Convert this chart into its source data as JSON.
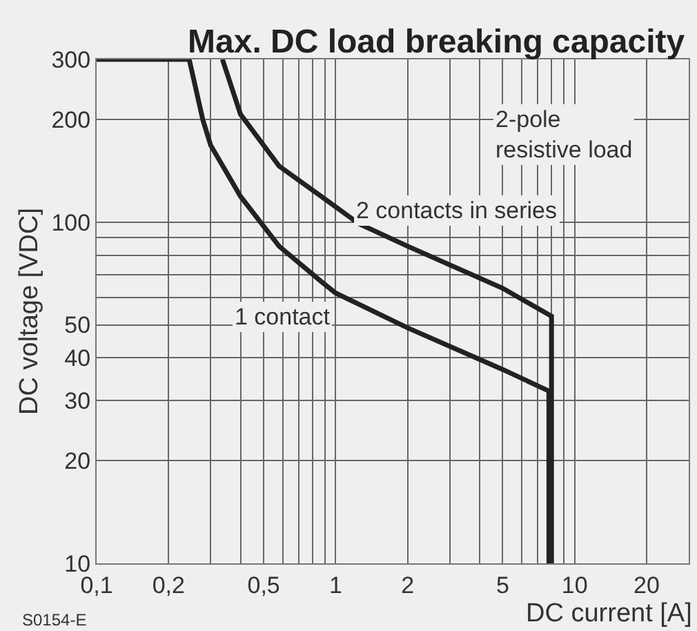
{
  "chart_data": {
    "type": "line",
    "title": "Max. DC load breaking capacity",
    "xlabel": "DC current [A]",
    "ylabel": "DC voltage [VDC]",
    "log": "xy",
    "grid": true,
    "legend": false,
    "marker": "none",
    "line_style": "solid",
    "xlim": [
      0.1,
      30
    ],
    "ylim": [
      10,
      300
    ],
    "xticks": [
      {
        "value": 0.1,
        "label": "0,1"
      },
      {
        "value": 0.2,
        "label": "0,2"
      },
      {
        "value": 0.3,
        "label": null
      },
      {
        "value": 0.4,
        "label": null
      },
      {
        "value": 0.5,
        "label": "0,5"
      },
      {
        "value": 0.6,
        "label": null
      },
      {
        "value": 0.7,
        "label": null
      },
      {
        "value": 0.8,
        "label": null
      },
      {
        "value": 0.9,
        "label": null
      },
      1,
      2,
      {
        "value": 3,
        "label": null
      },
      {
        "value": 4,
        "label": null
      },
      5,
      {
        "value": 6,
        "label": null
      },
      {
        "value": 7,
        "label": null
      },
      {
        "value": 8,
        "label": null
      },
      {
        "value": 9,
        "label": null
      },
      10,
      20,
      {
        "value": 30,
        "label": null
      }
    ],
    "yticks": [
      10,
      20,
      30,
      40,
      50,
      {
        "value": 60,
        "label": null
      },
      {
        "value": 70,
        "label": null
      },
      {
        "value": 80,
        "label": null
      },
      {
        "value": 90,
        "label": null
      },
      100,
      200,
      300
    ],
    "series": [
      {
        "name": "1 contact",
        "color": "#222222",
        "x": [
          0.1,
          0.244,
          0.278,
          0.3,
          0.4,
          0.58,
          0.87,
          1,
          2,
          5,
          7.8,
          7.8
        ],
        "values": [
          300,
          300,
          200,
          168,
          119,
          85,
          67,
          62,
          49,
          37,
          32,
          10
        ]
      },
      {
        "name": "2 contacts in series",
        "color": "#222222",
        "x": [
          0.336,
          0.4,
          0.58,
          0.87,
          1.25,
          2,
          5,
          8,
          8
        ],
        "values": [
          300,
          207,
          146,
          119,
          99,
          85,
          64,
          53,
          10
        ]
      }
    ],
    "annotations": [
      "2-pole\nresistive load",
      "S0154-E"
    ]
  }
}
